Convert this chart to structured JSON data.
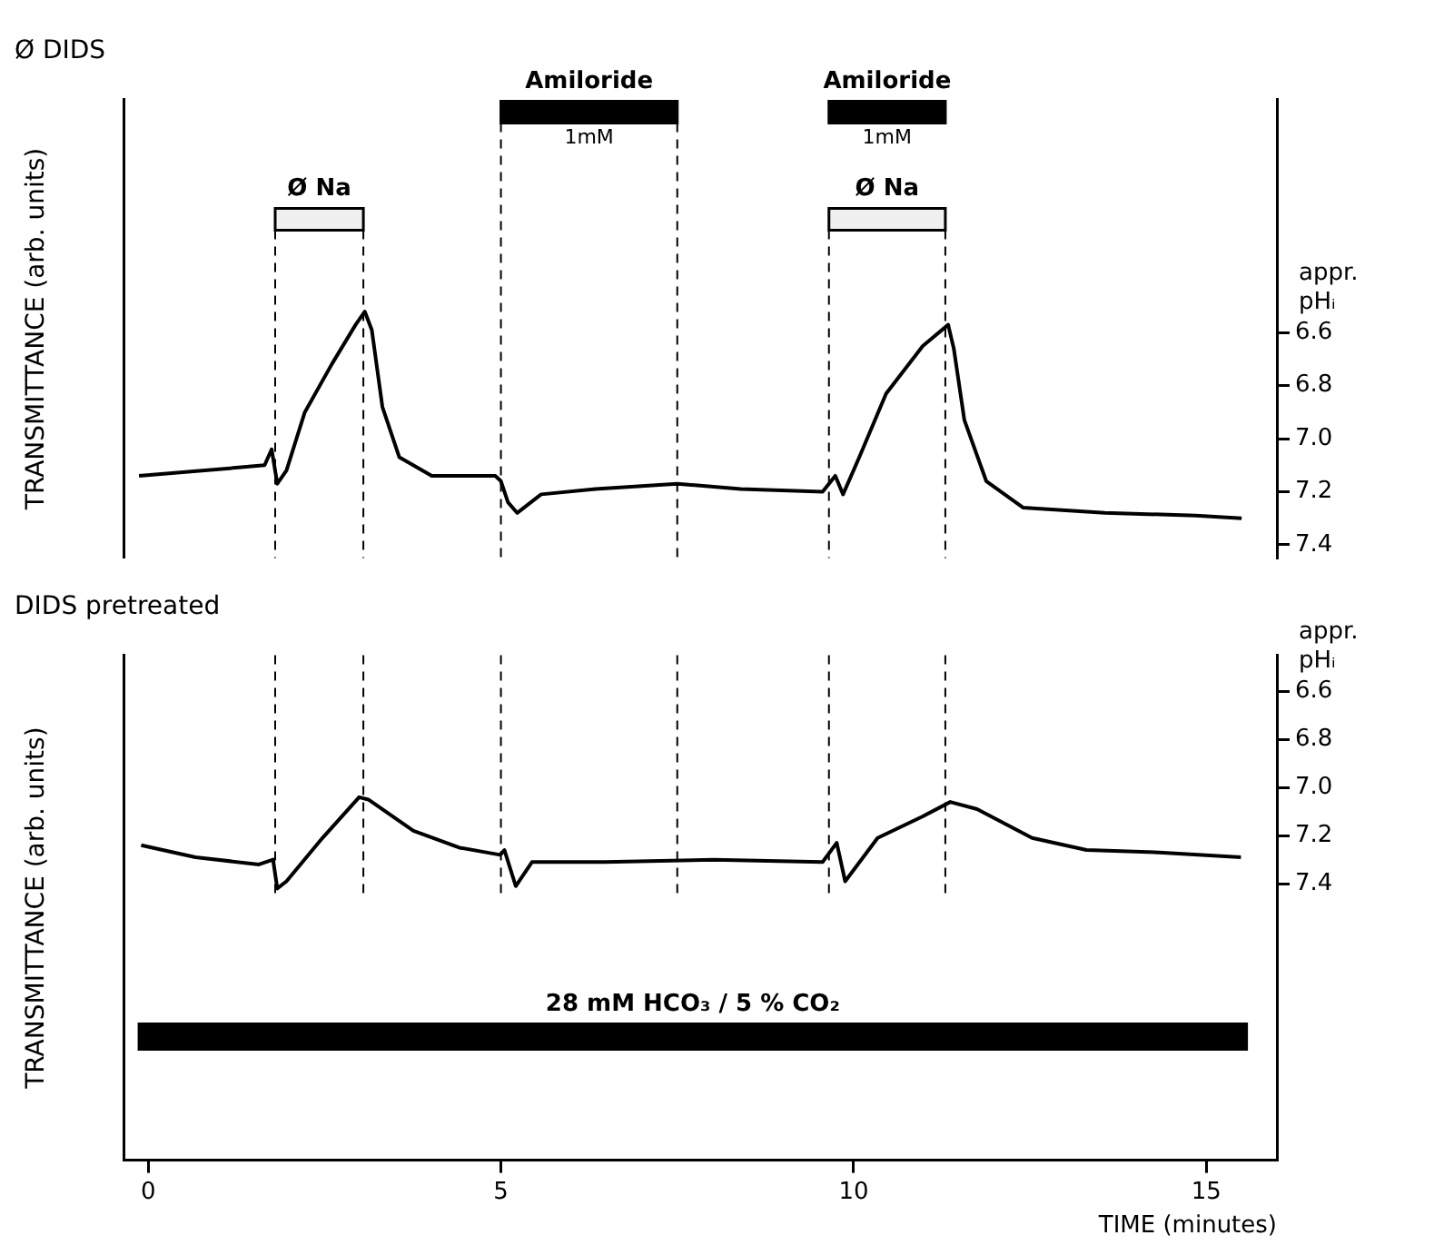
{
  "chart_data": [
    {
      "type": "line",
      "title": "Ø DIDS",
      "ylabel": "TRANSMITTANCE (arb. units)",
      "y2label": "appr. pHᵢ",
      "xlim": [
        -0.35,
        16.0
      ],
      "y2lim": [
        7.45,
        5.72
      ],
      "y2ticks": [
        6.6,
        6.8,
        {
          "value": 7.0,
          "label": "7.0"
        },
        7.2,
        7.4
      ],
      "tick_labels": "y",
      "series": [
        {
          "color": "#000000",
          "axis": "y2",
          "x": [
            -0.13,
            0.8,
            1.65,
            1.75,
            1.83,
            1.96,
            2.22,
            2.6,
            2.94,
            3.07,
            3.17,
            3.32,
            3.56,
            4.02,
            4.92,
            5.0,
            5.1,
            5.23,
            5.57,
            6.34,
            7.5,
            8.4,
            9.56,
            9.74,
            9.85,
            10.08,
            10.46,
            10.98,
            11.34,
            11.42,
            11.57,
            11.88,
            12.4,
            13.56,
            14.85,
            15.5
          ],
          "values": [
            7.14,
            7.12,
            7.1,
            7.04,
            7.17,
            7.12,
            6.9,
            6.72,
            6.57,
            6.52,
            6.59,
            6.88,
            7.07,
            7.14,
            7.14,
            7.16,
            7.24,
            7.28,
            7.21,
            7.19,
            7.17,
            7.19,
            7.2,
            7.14,
            7.21,
            7.07,
            6.83,
            6.65,
            6.57,
            6.66,
            6.93,
            7.16,
            7.26,
            7.28,
            7.29,
            7.3
          ]
        }
      ],
      "ref_lines": [
        {
          "axis": "x",
          "value": 1.8,
          "line_style": "dashed"
        },
        {
          "axis": "x",
          "value": 3.05,
          "line_style": "dashed"
        },
        {
          "axis": "x",
          "value": 5.0,
          "line_style": "dashed"
        },
        {
          "axis": "x",
          "value": 7.5,
          "line_style": "dashed"
        },
        {
          "axis": "x",
          "value": 9.65,
          "line_style": "dashed"
        },
        {
          "axis": "x",
          "value": 11.3,
          "line_style": "dashed"
        }
      ],
      "bands": [
        {
          "axis": "x",
          "from": 1.8,
          "to": 3.05,
          "label": "Ø Na",
          "color": "#f0f0f0"
        },
        {
          "axis": "x",
          "from": 5.0,
          "to": 7.5,
          "label": "Amiloride",
          "color": "#000000"
        },
        {
          "axis": "x",
          "from": 9.65,
          "to": 11.3,
          "label": "Amiloride",
          "color": "#000000"
        },
        {
          "axis": "x",
          "from": 9.65,
          "to": 11.3,
          "label": "Ø Na",
          "color": "#f0f0f0"
        }
      ],
      "annotations": [
        "1mM",
        "1mM"
      ]
    },
    {
      "type": "line",
      "title": "DIDS pretreated",
      "ylabel": "TRANSMITTANCE (arb. units)",
      "y2label": "appr. pHᵢ",
      "xlabel": "TIME (minutes)",
      "xlim": [
        -0.35,
        16.0
      ],
      "xticks": [
        0,
        5,
        10,
        15
      ],
      "y2lim": [
        8.55,
        6.45
      ],
      "y2ticks": [
        6.6,
        6.8,
        {
          "value": 7.0,
          "label": "7.0"
        },
        7.2,
        7.4
      ],
      "series": [
        {
          "color": "#000000",
          "axis": "y2",
          "x": [
            -0.1,
            0.67,
            1.57,
            1.77,
            1.83,
            1.96,
            2.47,
            2.99,
            3.12,
            3.76,
            4.41,
            4.99,
            5.05,
            5.21,
            5.44,
            6.47,
            8.02,
            9.56,
            9.76,
            9.88,
            10.34,
            10.98,
            11.37,
            11.75,
            12.53,
            13.3,
            14.33,
            15.49
          ],
          "values": [
            7.24,
            7.29,
            7.32,
            7.3,
            7.42,
            7.39,
            7.21,
            7.04,
            7.05,
            7.18,
            7.25,
            7.28,
            7.26,
            7.41,
            7.31,
            7.31,
            7.3,
            7.31,
            7.23,
            7.39,
            7.21,
            7.12,
            7.06,
            7.09,
            7.21,
            7.26,
            7.27,
            7.29
          ]
        }
      ],
      "ref_lines": [
        {
          "axis": "x",
          "value": 1.8,
          "line_style": "dashed"
        },
        {
          "axis": "x",
          "value": 3.05,
          "line_style": "dashed"
        },
        {
          "axis": "x",
          "value": 5.0,
          "line_style": "dashed"
        },
        {
          "axis": "x",
          "value": 7.5,
          "line_style": "dashed"
        },
        {
          "axis": "x",
          "value": 9.65,
          "line_style": "dashed"
        },
        {
          "axis": "x",
          "value": 11.3,
          "line_style": "dashed"
        }
      ],
      "bands": [
        {
          "axis": "x",
          "from": -0.13,
          "to": 15.57,
          "label": "28 mM HCO₃ / 5 % CO₂",
          "color": "#000000"
        }
      ]
    }
  ]
}
